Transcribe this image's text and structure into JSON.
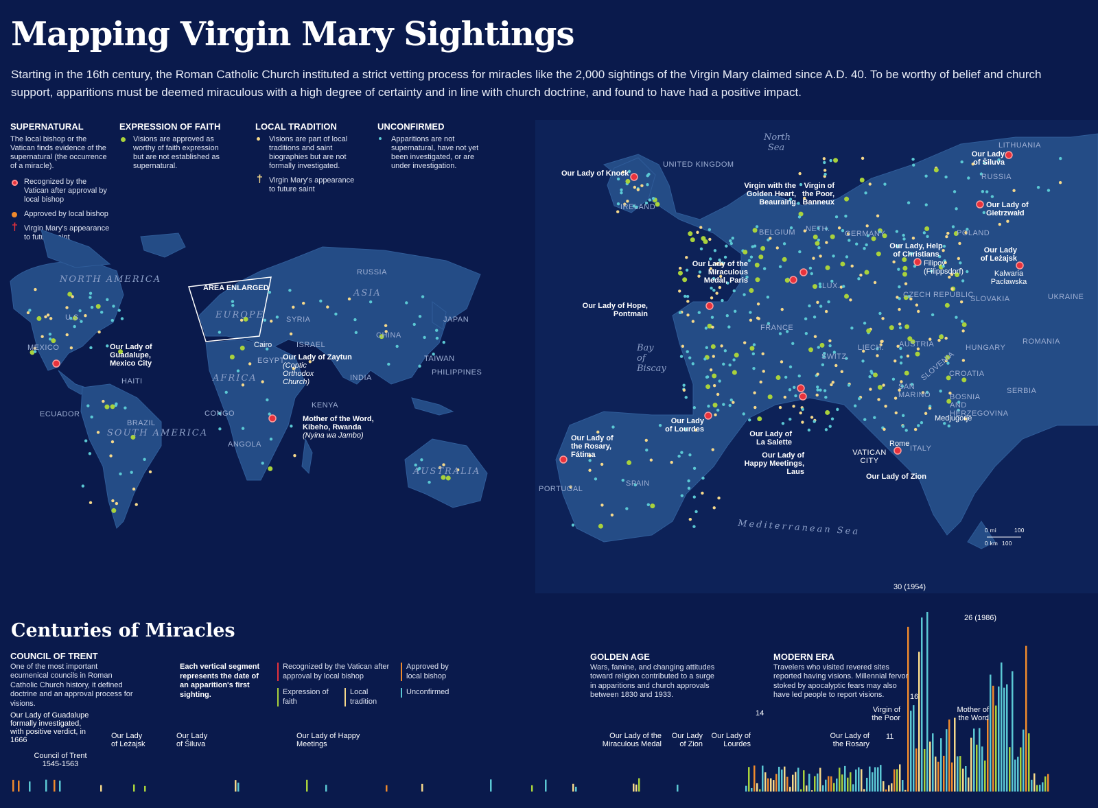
{
  "header": {
    "title": "Mapping Virgin Mary Sightings",
    "intro": "Starting in the 16th century, the Roman Catholic Church instituted a strict vetting process for miracles like the 2,000 sightings of the Virgin Mary claimed since A.D. 40. To be worthy of belief and church support, apparitions must be deemed miraculous with a high degree of certainty and in line with church doctrine, and found to have had a positive impact."
  },
  "legend": {
    "supernatural": {
      "title": "SUPERNATURAL",
      "desc": "The local bishop or the Vatican finds evidence of the supernatural (the occurrence of a miracle).",
      "item1": "Recognized by the Vatican after approval by local bishop",
      "item2": "Approved by local bishop",
      "item3": "Virgin Mary's appearance to future saint"
    },
    "faith": {
      "title": "EXPRESSION OF FAITH",
      "desc": "Visions are approved as worthy of faith expression but are not established as supernatural."
    },
    "local": {
      "title": "LOCAL TRADITION",
      "desc": "Visions are part of local traditions and saint biographies but are not formally investigated.",
      "item1": "Virgin Mary's appearance to future saint"
    },
    "unconfirmed": {
      "title": "UNCONFIRMED",
      "desc": "Apparitions are not supernatural, have not yet been investigated, or are under investigation."
    }
  },
  "colors": {
    "background": "#0a1a4c",
    "land": "#244c86",
    "vatican": "#e8323c",
    "local_bishop": "#f08a2c",
    "faith": "#a9d23c",
    "tradition": "#f6d98b",
    "unconfirmed": "#5bc8d4"
  },
  "world_map": {
    "regions": [
      "NORTH AMERICA",
      "SOUTH AMERICA",
      "EUROPE",
      "AFRICA",
      "ASIA",
      "AUSTRALIA"
    ],
    "countries": [
      "U.S.",
      "MEXICO",
      "HAITI",
      "ECUADOR",
      "BRAZIL",
      "CONGO",
      "ANGOLA",
      "KENYA",
      "EGYPT",
      "ISRAEL",
      "SYRIA",
      "RUSSIA",
      "CHINA",
      "INDIA",
      "JAPAN",
      "TAIWAN",
      "PHILIPPINES"
    ],
    "area_enlarged": "AREA ENLARGED",
    "cairo": "Cairo",
    "guadalupe": "Our Lady of Guadalupe, Mexico City",
    "zaytun": "Our Lady of Zaytun",
    "zaytun_note": "(Coptic Orthodox Church)",
    "kibeho": "Mother of the Word, Kibeho, Rwanda",
    "kibeho_note": "(Nyina wa Jambo)"
  },
  "europe_map": {
    "seas": [
      "North Sea",
      "Bay of Biscay",
      "Mediterranean Sea"
    ],
    "countries": [
      "UNITED KINGDOM",
      "IRELAND",
      "BELGIUM",
      "NETH.",
      "LUX.",
      "GERMANY",
      "POLAND",
      "LITHUANIA",
      "RUSSIA",
      "UKRAINE",
      "CZECH REPUBLIC",
      "SLOVAKIA",
      "AUSTRIA",
      "HUNGARY",
      "ROMANIA",
      "SLOVENIA",
      "CROATIA",
      "BOSNIA AND HERZEGOVINA",
      "SERBIA",
      "FRANCE",
      "SWITZ.",
      "LIECH.",
      "SAN MARINO",
      "ITALY",
      "SPAIN",
      "PORTUGAL",
      "VATICAN CITY"
    ],
    "cities": [
      "Rome",
      "Medjugorje",
      "Kalwaria Pacławska",
      "Filipov (Filippsdorf)"
    ],
    "places": [
      "Our Lady of Knock",
      "Virgin with the Golden Heart, Beauraing",
      "Virgin of the Poor, Banneux",
      "Our Lady of the Miraculous Medal, Paris",
      "Our Lady of Hope, Pontmain",
      "Our Lady of Lourdes",
      "Our Lady of the Rosary, Fátima",
      "Our Lady of La Salette",
      "Our Lady of Happy Meetings, Laus",
      "Our Lady of Zion",
      "Our Lady, Help of Christians",
      "Our Lady of Šiluva",
      "Our Lady of Gietrzwałd",
      "Our Lady of Leżajsk"
    ],
    "scale": {
      "mi": "0 mi",
      "mi_val": "100",
      "km": "0 km",
      "km_val": "100"
    }
  },
  "timeline": {
    "heading": "Centuries of Miracles",
    "trent": {
      "title": "COUNCIL OF TRENT",
      "desc": "One of the most important ecumenical councils in Roman Catholic Church history, it defined doctrine and an approval process for visions."
    },
    "segment_note": "Each vertical segment represents the date of an apparition's first sighting.",
    "keys": [
      "Recognized by the Vatican after approval by local bishop",
      "Approved by local bishop",
      "Expression of faith",
      "Local tradition",
      "Unconfirmed"
    ],
    "golden": {
      "title": "GOLDEN AGE",
      "desc": "Wars, famine, and changing attitudes toward religion contributed to a surge in apparitions and church approvals between 1830 and 1933."
    },
    "modern": {
      "title": "MODERN ERA",
      "desc": "Travelers who visited revered sites reported having visions. Millennial fervor stoked by apocalyptic fears may also have led people to report visions."
    },
    "annotations": [
      "Our Lady of Guadalupe formally investigated, with positive verdict, in 1666",
      "Council of Trent 1545-1563",
      "Our Lady of Leżajsk",
      "Our Lady of Šiluva",
      "Our Lady of Happy Meetings",
      "Our Lady of the Miraculous Medal",
      "Our Lady of Zion",
      "Our Lady of Lourdes",
      "Our Lady of the Rosary",
      "Virgin of the Poor",
      "Mother of the Word"
    ],
    "peaks": [
      "30 (1954)",
      "26 (1986)",
      "16",
      "14",
      "11"
    ]
  }
}
